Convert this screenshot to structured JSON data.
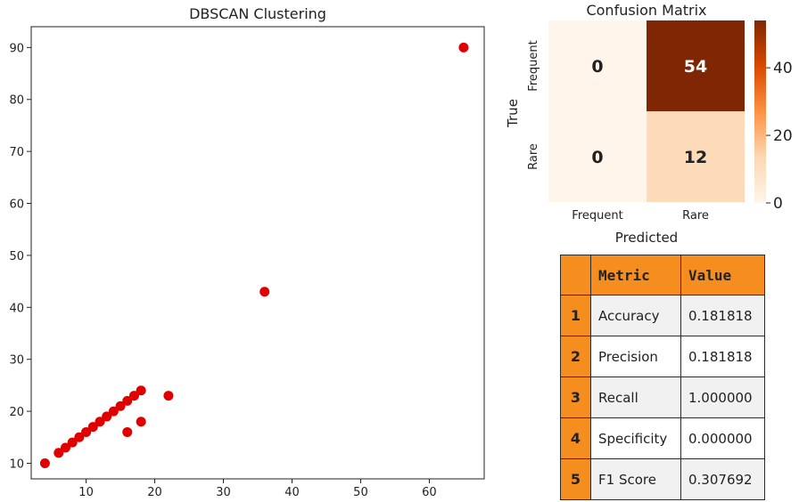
{
  "chart_data": [
    {
      "type": "scatter",
      "title": "DBSCAN Clustering",
      "xlabel": "",
      "ylabel": "",
      "xlim": [
        2,
        68
      ],
      "ylim": [
        7,
        94
      ],
      "xticks": [
        10,
        20,
        30,
        40,
        50,
        60
      ],
      "yticks": [
        10,
        20,
        30,
        40,
        50,
        60,
        70,
        80,
        90
      ],
      "color": "#e00000",
      "points": [
        {
          "x": 4,
          "y": 10
        },
        {
          "x": 6,
          "y": 12
        },
        {
          "x": 7,
          "y": 13
        },
        {
          "x": 8,
          "y": 14
        },
        {
          "x": 9,
          "y": 15
        },
        {
          "x": 10,
          "y": 16
        },
        {
          "x": 11,
          "y": 17
        },
        {
          "x": 12,
          "y": 18
        },
        {
          "x": 13,
          "y": 19
        },
        {
          "x": 14,
          "y": 20
        },
        {
          "x": 15,
          "y": 21
        },
        {
          "x": 16,
          "y": 22
        },
        {
          "x": 17,
          "y": 23
        },
        {
          "x": 18,
          "y": 24
        },
        {
          "x": 16,
          "y": 16
        },
        {
          "x": 18,
          "y": 18
        },
        {
          "x": 22,
          "y": 23
        },
        {
          "x": 36,
          "y": 43
        },
        {
          "x": 65,
          "y": 90
        }
      ]
    },
    {
      "type": "heatmap",
      "title": "Confusion Matrix",
      "xlabel": "Predicted",
      "ylabel": "True",
      "x_categories": [
        "Frequent",
        "Rare"
      ],
      "y_categories": [
        "Frequent",
        "Rare"
      ],
      "values": [
        [
          0,
          54
        ],
        [
          0,
          12
        ]
      ],
      "colorbar_ticks": [
        0,
        20,
        40
      ],
      "colorbar_range": [
        0,
        54
      ],
      "colormap": [
        "#fff5eb",
        "#fdd8b2",
        "#fd9243",
        "#d94801",
        "#7f2704"
      ]
    }
  ],
  "metrics_table": {
    "headers": [
      "Metric",
      "Value"
    ],
    "rows": [
      {
        "index": "1",
        "metric": "Accuracy",
        "value": "0.181818"
      },
      {
        "index": "2",
        "metric": "Precision",
        "value": "0.181818"
      },
      {
        "index": "3",
        "metric": "Recall",
        "value": "1.000000"
      },
      {
        "index": "4",
        "metric": "Specificity",
        "value": "0.000000"
      },
      {
        "index": "5",
        "metric": "F1 Score",
        "value": "0.307692"
      }
    ]
  }
}
